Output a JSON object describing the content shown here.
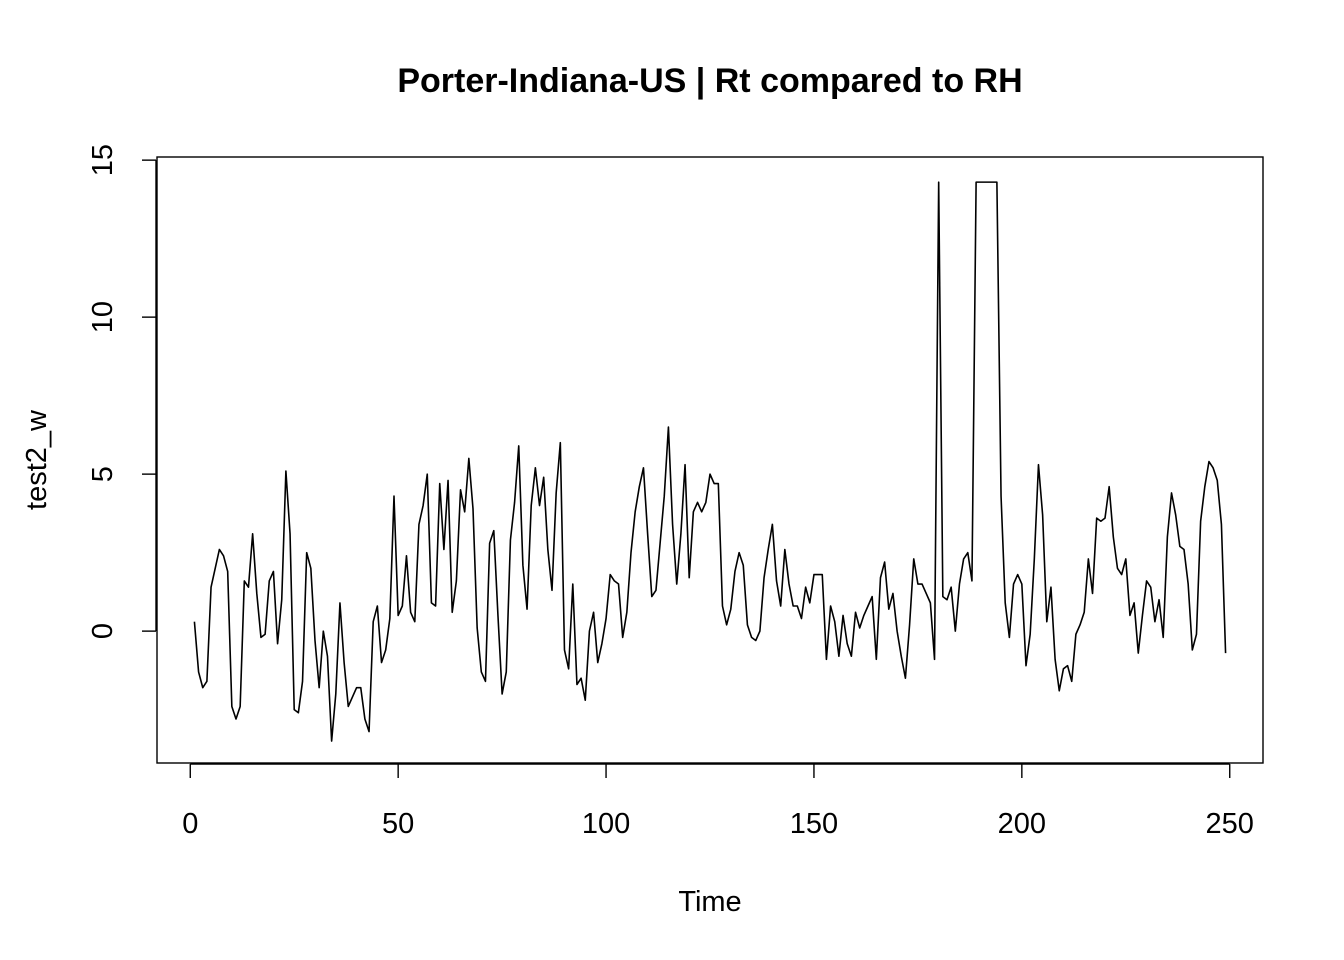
{
  "chart_data": {
    "type": "line",
    "title": "Porter-Indiana-US | Rt compared to RH",
    "xlabel": "Time",
    "ylabel": "test2_w",
    "xlim": [
      -8,
      258
    ],
    "ylim": [
      -4.2,
      15.1
    ],
    "xticks": [
      0,
      50,
      100,
      150,
      200,
      250
    ],
    "yticks": [
      0,
      5,
      10,
      15
    ],
    "grid": false,
    "legend": "none",
    "line_color": "#000000",
    "series": [
      {
        "values": [
          0.3,
          -1.3,
          -1.8,
          -1.6,
          1.4,
          2.0,
          2.6,
          2.4,
          1.9,
          -2.4,
          -2.8,
          -2.4,
          1.6,
          1.4,
          3.1,
          1.2,
          -0.2,
          -0.1,
          1.6,
          1.9,
          -0.4,
          1.0,
          5.1,
          3.1,
          -2.5,
          -2.6,
          -1.6,
          2.5,
          2.0,
          -0.3,
          -1.8,
          0.0,
          -0.8,
          -3.5,
          -2.0,
          0.9,
          -1.0,
          -2.4,
          -2.1,
          -1.8,
          -1.8,
          -2.8,
          -3.2,
          0.3,
          0.8,
          -1.0,
          -0.6,
          0.4,
          4.3,
          0.5,
          0.8,
          2.4,
          0.6,
          0.3,
          3.4,
          4.0,
          5.0,
          0.9,
          0.8,
          4.7,
          2.6,
          4.8,
          0.6,
          1.6,
          4.5,
          3.8,
          5.5,
          3.9,
          0.1,
          -1.3,
          -1.6,
          2.8,
          3.2,
          0.5,
          -2.0,
          -1.3,
          2.9,
          4.1,
          5.9,
          2.1,
          0.7,
          4.0,
          5.2,
          4.0,
          4.9,
          2.6,
          1.3,
          4.4,
          6.0,
          -0.6,
          -1.2,
          1.5,
          -1.7,
          -1.5,
          -2.2,
          0.0,
          0.6,
          -1.0,
          -0.4,
          0.4,
          1.8,
          1.6,
          1.5,
          -0.2,
          0.6,
          2.5,
          3.8,
          4.6,
          5.2,
          3.1,
          1.1,
          1.3,
          2.8,
          4.3,
          6.5,
          3.4,
          1.5,
          3.1,
          5.3,
          1.7,
          3.8,
          4.1,
          3.8,
          4.1,
          5.0,
          4.7,
          4.7,
          0.8,
          0.2,
          0.7,
          1.9,
          2.5,
          2.1,
          0.2,
          -0.2,
          -0.3,
          0.0,
          1.7,
          2.6,
          3.4,
          1.6,
          0.8,
          2.6,
          1.5,
          0.8,
          0.8,
          0.4,
          1.4,
          0.9,
          1.8,
          1.8,
          1.8,
          -0.9,
          0.8,
          0.3,
          -0.8,
          0.5,
          -0.4,
          -0.8,
          0.6,
          0.1,
          0.5,
          0.8,
          1.1,
          -0.9,
          1.7,
          2.2,
          0.7,
          1.2,
          0.0,
          -0.8,
          -1.5,
          0.2,
          2.3,
          1.5,
          1.5,
          1.2,
          0.9,
          -0.9,
          14.3,
          1.1,
          1.0,
          1.4,
          0.0,
          1.5,
          2.3,
          2.5,
          1.6,
          14.3,
          14.3,
          14.3,
          14.3,
          14.3,
          14.3,
          4.3,
          0.9,
          -0.2,
          1.5,
          1.8,
          1.5,
          -1.1,
          -0.1,
          2.3,
          5.3,
          3.7,
          0.3,
          1.4,
          -0.9,
          -1.9,
          -1.2,
          -1.1,
          -1.6,
          -0.1,
          0.2,
          0.6,
          2.3,
          1.2,
          3.6,
          3.5,
          3.6,
          4.6,
          3.0,
          2.0,
          1.8,
          2.3,
          0.5,
          0.9,
          -0.7,
          0.5,
          1.6,
          1.4,
          0.3,
          1.0,
          -0.2,
          3.0,
          4.4,
          3.7,
          2.7,
          2.6,
          1.5,
          -0.6,
          -0.1,
          3.5,
          4.6,
          5.4,
          5.2,
          4.8,
          3.4,
          -0.7
        ]
      }
    ]
  }
}
